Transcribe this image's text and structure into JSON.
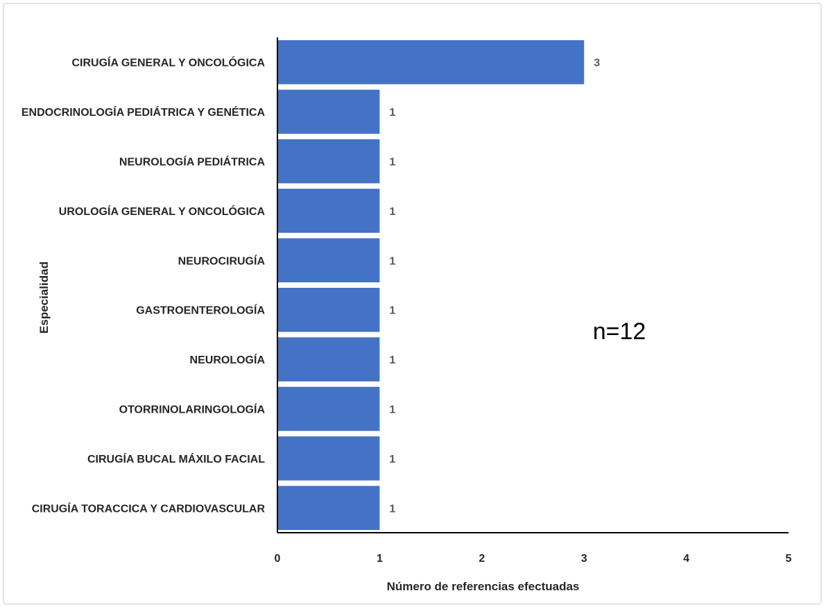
{
  "chart_data": {
    "type": "bar",
    "orientation": "horizontal",
    "categories": [
      "CIRUGÍA GENERAL Y ONCOLÓGICA",
      "ENDOCRINOLOGÍA PEDIÁTRICA Y  GENÉTICA",
      "NEUROLOGÍA PEDIÁTRICA",
      "UROLOGÍA GENERAL Y ONCOLÓGICA",
      "NEUROCIRUGÍA",
      "GASTROENTEROLOGÍA",
      "NEUROLOGÍA",
      "OTORRINOLARINGOLOGÍA",
      "CIRUGÍA BUCAL MÁXILO FACIAL",
      "CIRUGÍA TORACCICA Y CARDIOVASCULAR"
    ],
    "values": [
      3,
      1,
      1,
      1,
      1,
      1,
      1,
      1,
      1,
      1
    ],
    "xlabel": "Número de referencias efectuadas",
    "ylabel": "Especialidad",
    "xlim": [
      0,
      5
    ],
    "xticks": [
      0,
      1,
      2,
      3,
      4,
      5
    ],
    "grid": false,
    "legend": "none",
    "annotation": "n=12",
    "bar_color": "#4472C4"
  }
}
